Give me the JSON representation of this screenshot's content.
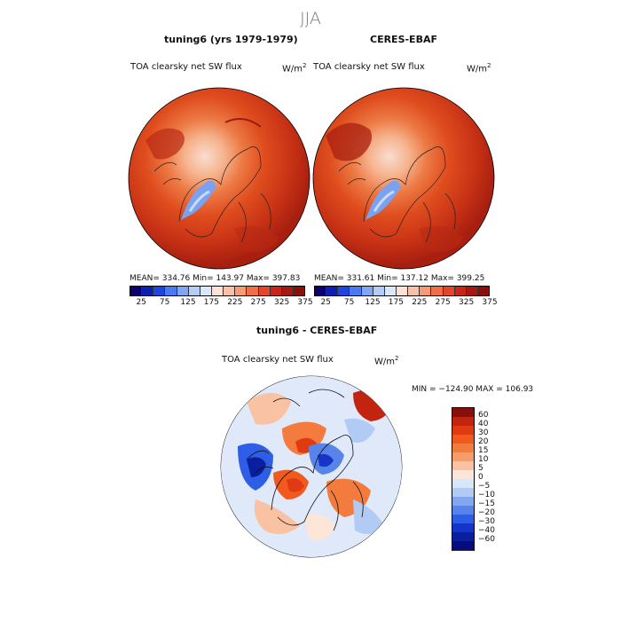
{
  "season": "JJA",
  "panels": [
    {
      "title": "tuning6 (yrs 1979-1979)",
      "var_label": "TOA clearsky net SW flux",
      "units": "W/m",
      "units_exp": "2",
      "stats": "MEAN= 334.76   Min= 143.97   Max= 397.83"
    },
    {
      "title": "CERES-EBAF",
      "var_label": "TOA clearsky net SW flux",
      "units": "W/m",
      "units_exp": "2",
      "stats": "MEAN= 331.61   Min= 137.12   Max= 399.25"
    }
  ],
  "abs_colorbar": {
    "ticks": [
      "25",
      "75",
      "125",
      "175",
      "225",
      "275",
      "325",
      "375"
    ],
    "colors": [
      "#08006e",
      "#0b1fb0",
      "#1f47e0",
      "#4b7aee",
      "#7fa6f2",
      "#b3cdf7",
      "#dbe8fb",
      "#fbe3d8",
      "#f8c0a4",
      "#f49b76",
      "#ef6f4b",
      "#e5452a",
      "#c9261b",
      "#a81812",
      "#85100c"
    ]
  },
  "diff": {
    "title": "tuning6 - CERES-EBAF",
    "var_label": "TOA clearsky net SW flux",
    "units": "W/m",
    "units_exp": "2",
    "minmax": "MIN = −124.90  MAX = 106.93",
    "levels": [
      "60",
      "40",
      "30",
      "20",
      "15",
      "10",
      "5",
      "0",
      "−5",
      "−10",
      "−15",
      "−20",
      "−30",
      "−40",
      "−60"
    ],
    "colors": [
      "#85100c",
      "#c3240f",
      "#df3a12",
      "#f05a1e",
      "#f47b3e",
      "#f79b6b",
      "#f9c2a3",
      "#fde6d8",
      "#d9e6f8",
      "#b1cbf4",
      "#84a6ef",
      "#5884ea",
      "#2f5ee6",
      "#1535c8",
      "#0a1ea0",
      "#040c80"
    ]
  }
}
